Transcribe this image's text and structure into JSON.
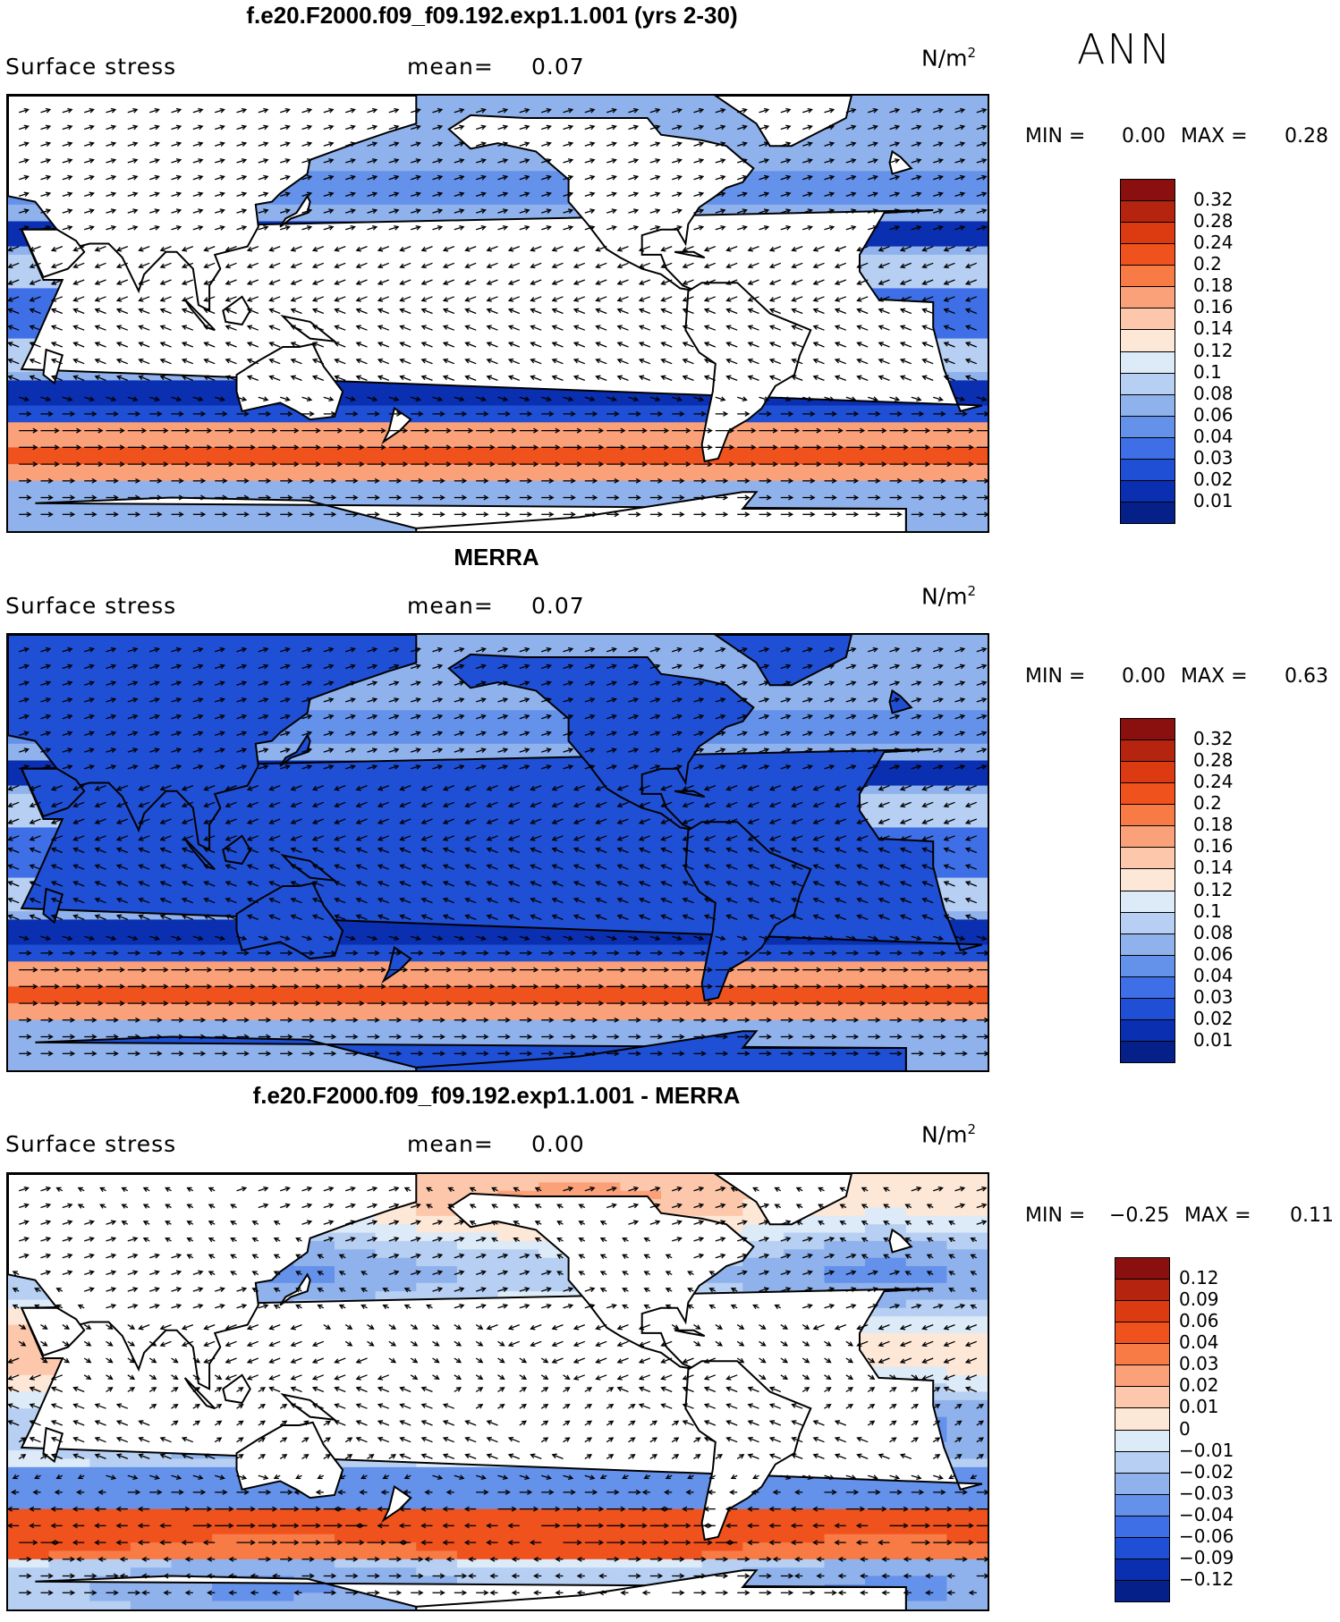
{
  "season": "ANN",
  "panels": [
    {
      "id": "model",
      "title": "f.e20.F2000.f09_f09.192.exp1.1.001 (yrs 2-30)",
      "variable": "Surface stress",
      "mean_label": "mean=",
      "mean_value": "0.07",
      "unit_base": "N/m",
      "unit_sup": "2",
      "min_label": "MIN =",
      "min_value": "0.00",
      "max_label": "MAX =",
      "max_value": "0.28",
      "colorbar_labels": [
        "0.32",
        "0.28",
        "0.24",
        "0.2",
        "0.18",
        "0.16",
        "0.14",
        "0.12",
        "0.1",
        "0.08",
        "0.06",
        "0.04",
        "0.03",
        "0.02",
        "0.01"
      ],
      "colorbar_colors": [
        "#8a0f0f",
        "#b5240e",
        "#dc3b12",
        "#f0521e",
        "#f87a45",
        "#fba179",
        "#fcc7aa",
        "#fde7d6",
        "#ddeaf8",
        "#b6cff2",
        "#8fb2ec",
        "#6491ea",
        "#3f6fe6",
        "#1f4fd4",
        "#0a2fb0",
        "#06208a"
      ],
      "style": "model"
    },
    {
      "id": "obs",
      "title": "MERRA",
      "variable": "Surface stress",
      "mean_label": "mean=",
      "mean_value": "0.07",
      "unit_base": "N/m",
      "unit_sup": "2",
      "min_label": "MIN =",
      "min_value": "0.00",
      "max_label": "MAX =",
      "max_value": "0.63",
      "colorbar_labels": [
        "0.32",
        "0.28",
        "0.24",
        "0.2",
        "0.18",
        "0.16",
        "0.14",
        "0.12",
        "0.1",
        "0.08",
        "0.06",
        "0.04",
        "0.03",
        "0.02",
        "0.01"
      ],
      "colorbar_colors": [
        "#8a0f0f",
        "#b5240e",
        "#dc3b12",
        "#f0521e",
        "#f87a45",
        "#fba179",
        "#fcc7aa",
        "#fde7d6",
        "#ddeaf8",
        "#b6cff2",
        "#8fb2ec",
        "#6491ea",
        "#3f6fe6",
        "#1f4fd4",
        "#0a2fb0",
        "#06208a"
      ],
      "style": "obs"
    },
    {
      "id": "diff",
      "title": "f.e20.F2000.f09_f09.192.exp1.1.001 - MERRA",
      "variable": "Surface stress",
      "mean_label": "mean=",
      "mean_value": "0.00",
      "unit_base": "N/m",
      "unit_sup": "2",
      "min_label": "MIN =",
      "min_value": "−0.25",
      "max_label": "MAX =",
      "max_value": "0.11",
      "colorbar_labels": [
        "0.12",
        "0.09",
        "0.06",
        "0.04",
        "0.03",
        "0.02",
        "0.01",
        "0",
        "−0.01",
        "−0.02",
        "−0.03",
        "−0.04",
        "−0.06",
        "−0.09",
        "−0.12"
      ],
      "colorbar_colors": [
        "#8a0f0f",
        "#b5240e",
        "#dc3b12",
        "#f0521e",
        "#f87a45",
        "#fba179",
        "#fcc7aa",
        "#fde7d6",
        "#ddeaf8",
        "#b6cff2",
        "#8fb2ec",
        "#6491ea",
        "#3f6fe6",
        "#1f4fd4",
        "#0a2fb0",
        "#06208a"
      ],
      "style": "diff"
    }
  ]
}
